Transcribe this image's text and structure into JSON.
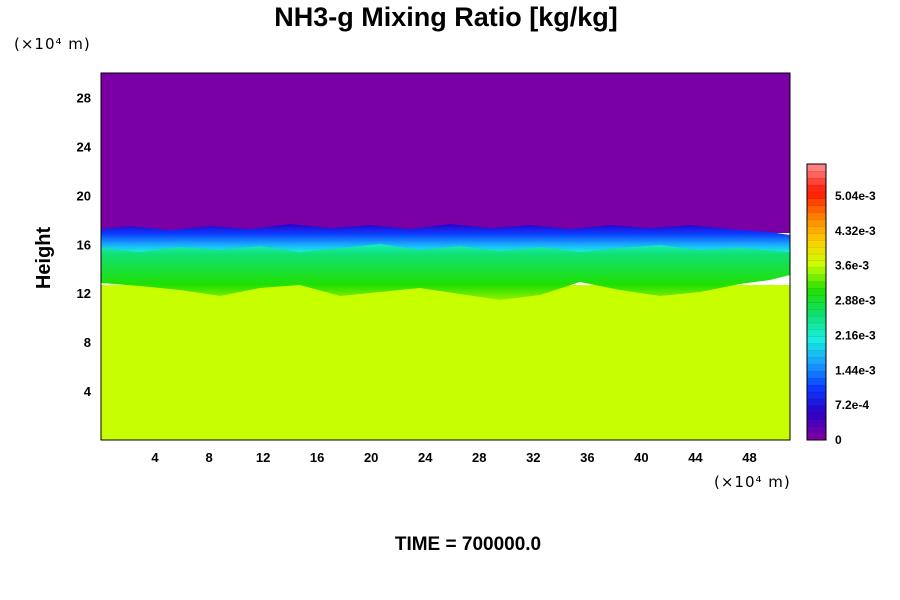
{
  "chart_data": {
    "type": "heatmap",
    "title": "NH3-g Mixing Ratio [kg/kg]",
    "ylabel": "Height",
    "x_unit": "(×10⁴ m)",
    "y_unit": "(×10⁴ m)",
    "xlim": [
      0,
      51
    ],
    "ylim": [
      0,
      30
    ],
    "x_ticks": [
      "4",
      "8",
      "12",
      "16",
      "20",
      "24",
      "28",
      "32",
      "36",
      "40",
      "44",
      "48"
    ],
    "y_ticks": [
      "4",
      "8",
      "12",
      "16",
      "20",
      "24",
      "28"
    ],
    "colorbar": {
      "range": [
        0,
        0.0057
      ],
      "tick_labels": [
        "0",
        "7.2e-4",
        "1.44e-3",
        "2.16e-3",
        "2.88e-3",
        "3.6e-3",
        "4.32e-3",
        "5.04e-3"
      ],
      "colors": [
        "#7a00a6",
        "#2a00c8",
        "#0a3cff",
        "#1aa0ff",
        "#18f0e0",
        "#10e070",
        "#20e000",
        "#c8ff00",
        "#ffd000",
        "#ff8000",
        "#ff1800",
        "#ff8080"
      ]
    },
    "regions": [
      {
        "y_range": [
          16.5,
          30
        ],
        "value": 0.0
      },
      {
        "y_range": [
          15.8,
          16.8
        ],
        "value": 0.0005
      },
      {
        "y_range": [
          14.8,
          16.2
        ],
        "value": 0.0017
      },
      {
        "y_range": [
          12.5,
          15.0
        ],
        "value": 0.0028
      },
      {
        "y_range": [
          0,
          12.5
        ],
        "value": 0.0036
      }
    ]
  },
  "footer": {
    "time_label": "TIME = 700000.0"
  }
}
